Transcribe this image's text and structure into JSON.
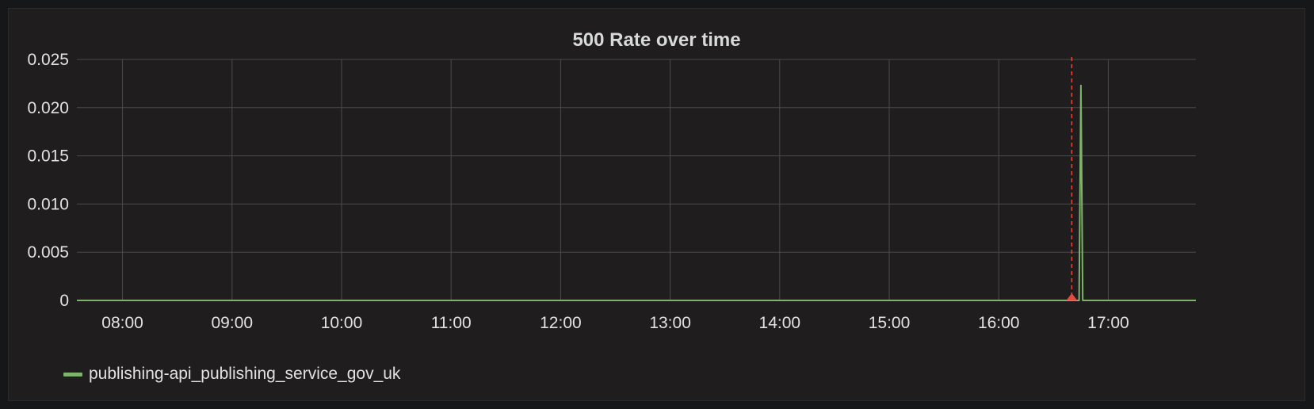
{
  "panel": {
    "title": "500 Rate over time"
  },
  "chart_data": {
    "type": "line",
    "title": "500 Rate over time",
    "xlabel": "",
    "ylabel": "",
    "x_ticks": [
      "08:00",
      "09:00",
      "10:00",
      "11:00",
      "12:00",
      "13:00",
      "14:00",
      "15:00",
      "16:00",
      "17:00"
    ],
    "y_ticks": [
      "0.025",
      "0.020",
      "0.015",
      "0.010",
      "0.005",
      "0"
    ],
    "xlim": [
      "07:35",
      "17:48"
    ],
    "ylim": [
      0,
      0.025
    ],
    "grid": true,
    "legend_position": "bottom-left",
    "series": [
      {
        "name": "publishing-api_publishing_service_gov_uk",
        "color": "#7eb26d",
        "points": [
          [
            "07:35",
            0
          ],
          [
            "16:44",
            0
          ],
          [
            "16:45",
            0.0223
          ],
          [
            "16:46",
            0
          ],
          [
            "17:48",
            0
          ]
        ]
      }
    ],
    "annotations": [
      {
        "time": "16:40",
        "color": "#e24d42",
        "style": "dashed"
      }
    ]
  }
}
